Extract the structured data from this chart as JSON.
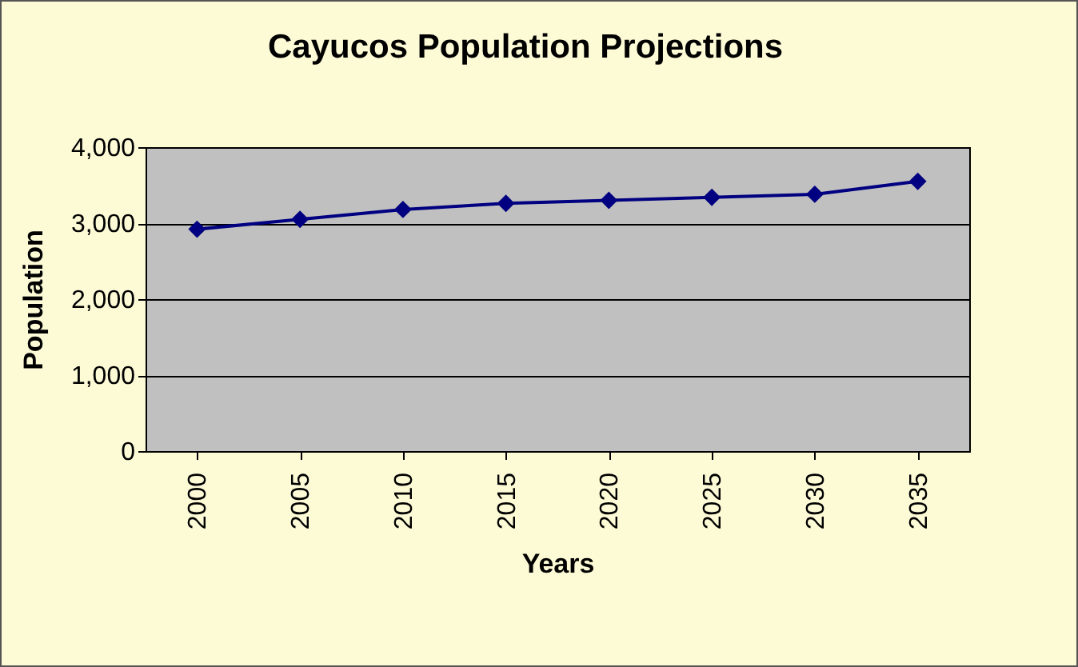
{
  "chart_data": {
    "type": "line",
    "title": "Cayucos Population Projections",
    "xlabel": "Years",
    "ylabel": "Population",
    "categories": [
      "2000",
      "2005",
      "2010",
      "2015",
      "2020",
      "2025",
      "2030",
      "2035"
    ],
    "series": [
      {
        "color": "#000080",
        "values": [
          2920,
          3050,
          3180,
          3260,
          3300,
          3340,
          3380,
          3550
        ]
      }
    ],
    "ylim": [
      0,
      4000
    ],
    "yticks": [
      {
        "value": 0,
        "label": "0"
      },
      {
        "value": 1000,
        "label": "1,000"
      },
      {
        "value": 2000,
        "label": "2,000"
      },
      {
        "value": 3000,
        "label": "3,000"
      },
      {
        "value": 4000,
        "label": "4,000"
      }
    ],
    "grid": "y",
    "marker": "diamond",
    "line_style": "solid",
    "legend": false
  }
}
